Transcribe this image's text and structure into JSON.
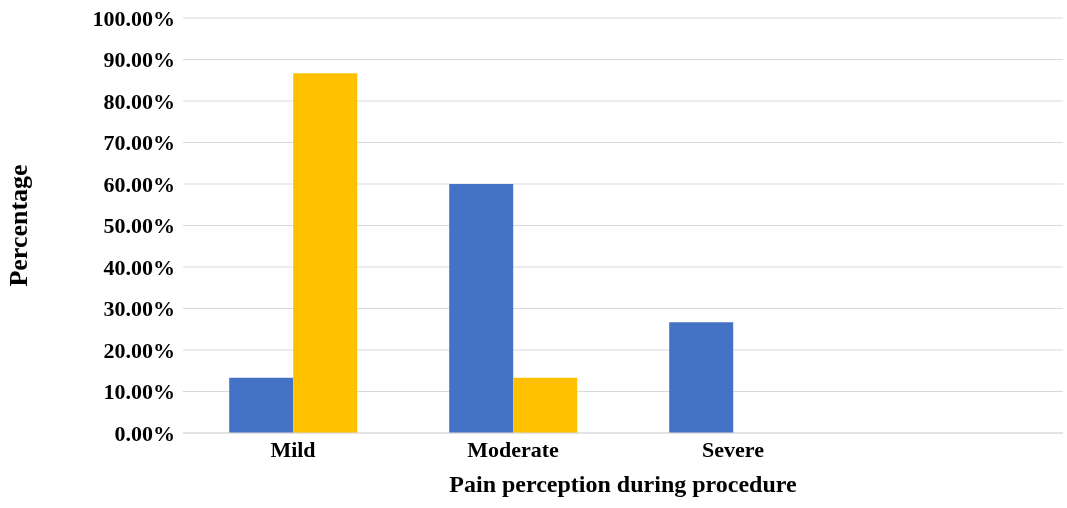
{
  "chart_data": {
    "type": "bar",
    "xlabel": "Pain perception during procedure",
    "ylabel": "Percentage",
    "categories": [
      "Mild",
      "Moderate",
      "Severe",
      null
    ],
    "series": [
      {
        "color": "#4472c4",
        "values": [
          13.3,
          60,
          26.7,
          null
        ]
      },
      {
        "color": "#ffc000",
        "values": [
          86.7,
          13.3,
          0,
          null
        ]
      }
    ],
    "ylim": [
      0,
      100
    ],
    "yticks": [
      {
        "value": 0,
        "label": "0.00%"
      },
      {
        "value": 10,
        "label": "10.00%"
      },
      {
        "value": 20,
        "label": "20.00%"
      },
      {
        "value": 30,
        "label": "30.00%"
      },
      {
        "value": 40,
        "label": "40.00%"
      },
      {
        "value": 50,
        "label": "50.00%"
      },
      {
        "value": 60,
        "label": "60.00%"
      },
      {
        "value": 70,
        "label": "70.00%"
      },
      {
        "value": 80,
        "label": "80.00%"
      },
      {
        "value": 90,
        "label": "90.00%"
      },
      {
        "value": 100,
        "label": "100.00%"
      }
    ],
    "grid": "y",
    "legend": false
  }
}
